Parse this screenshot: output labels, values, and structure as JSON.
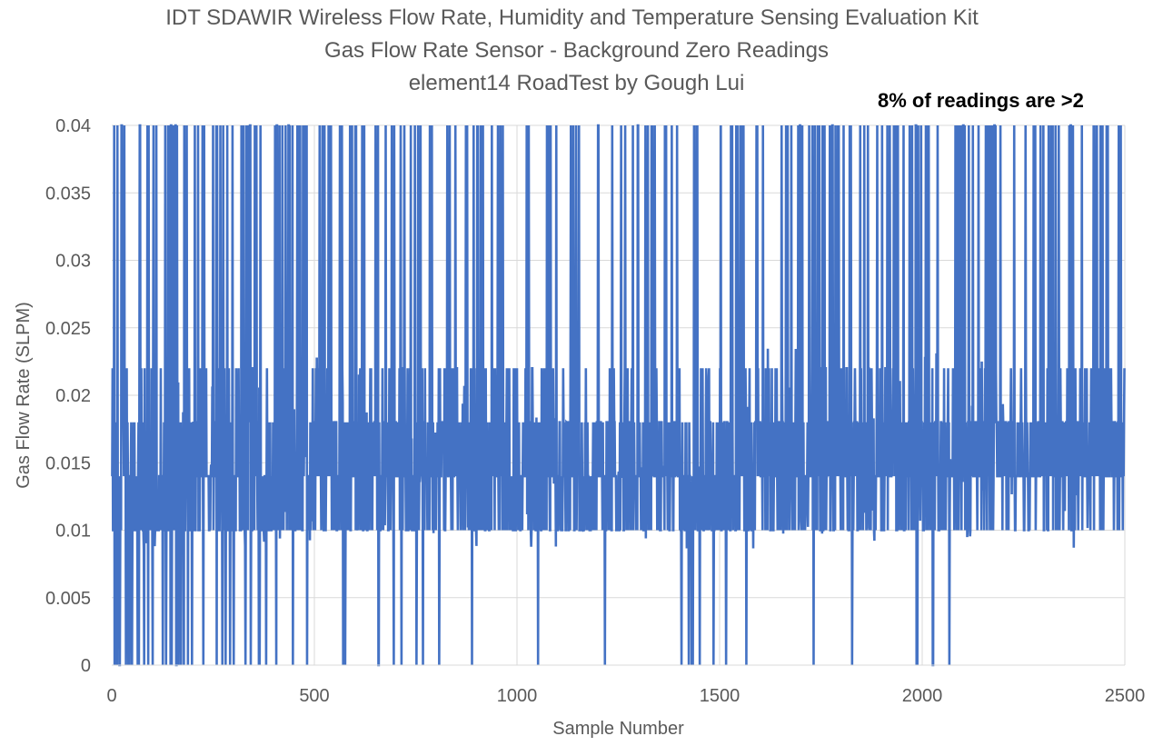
{
  "chart_data": {
    "type": "line",
    "title": "IDT SDAWIR Wireless Flow Rate, Humidity and Temperature Sensing Evaluation Kit",
    "subtitle": "Gas Flow Rate Sensor - Background Zero Readings",
    "byline": "element14 RoadTest by Gough Lui",
    "annotation": "8% of readings are >2",
    "xlabel": "Sample Number",
    "ylabel": "Gas Flow Rate (SLPM)",
    "xlim": [
      0,
      2500
    ],
    "ylim": [
      0,
      0.04
    ],
    "x_ticks": [
      "0",
      "500",
      "1000",
      "1500",
      "2000",
      "2500"
    ],
    "y_ticks": [
      "0",
      "0.005",
      "0.01",
      "0.015",
      "0.02",
      "0.025",
      "0.03",
      "0.035",
      "0.04"
    ],
    "grid": true,
    "legend": "none",
    "series_color": "#4472C4",
    "series": [
      {
        "n_points": 2500,
        "typical_band": [
          0.009,
          0.022
        ],
        "segments": [
          {
            "x": [
              0,
              200
            ],
            "level_probs": [
              0.45,
              0.35,
              0.1,
              0.1
            ],
            "spike_high": 0.1,
            "spike_zero": 0.12
          },
          {
            "x": [
              200,
              500
            ],
            "level_probs": [
              0.35,
              0.4,
              0.15,
              0.1
            ],
            "spike_high": 0.14,
            "spike_zero": 0.06
          },
          {
            "x": [
              500,
              1000
            ],
            "level_probs": [
              0.25,
              0.35,
              0.3,
              0.1
            ],
            "spike_high": 0.07,
            "spike_zero": 0.03
          },
          {
            "x": [
              1000,
              1400
            ],
            "level_probs": [
              0.25,
              0.35,
              0.3,
              0.1
            ],
            "spike_high": 0.08,
            "spike_zero": 0.01
          },
          {
            "x": [
              1400,
              1500
            ],
            "level_probs": [
              0.4,
              0.4,
              0.15,
              0.05
            ],
            "spike_high": 0.05,
            "spike_zero": 0.1
          },
          {
            "x": [
              1500,
              2000
            ],
            "level_probs": [
              0.25,
              0.35,
              0.3,
              0.1
            ],
            "spike_high": 0.09,
            "spike_zero": 0.02
          },
          {
            "x": [
              2000,
              2100
            ],
            "level_probs": [
              0.3,
              0.4,
              0.2,
              0.1
            ],
            "spike_high": 0.08,
            "spike_zero": 0.03
          },
          {
            "x": [
              2100,
              2500
            ],
            "level_probs": [
              0.15,
              0.4,
              0.35,
              0.1
            ],
            "spike_high": 0.12,
            "spike_zero": 0.0
          }
        ],
        "levels": [
          0.01,
          0.014,
          0.018,
          0.022
        ]
      }
    ]
  }
}
